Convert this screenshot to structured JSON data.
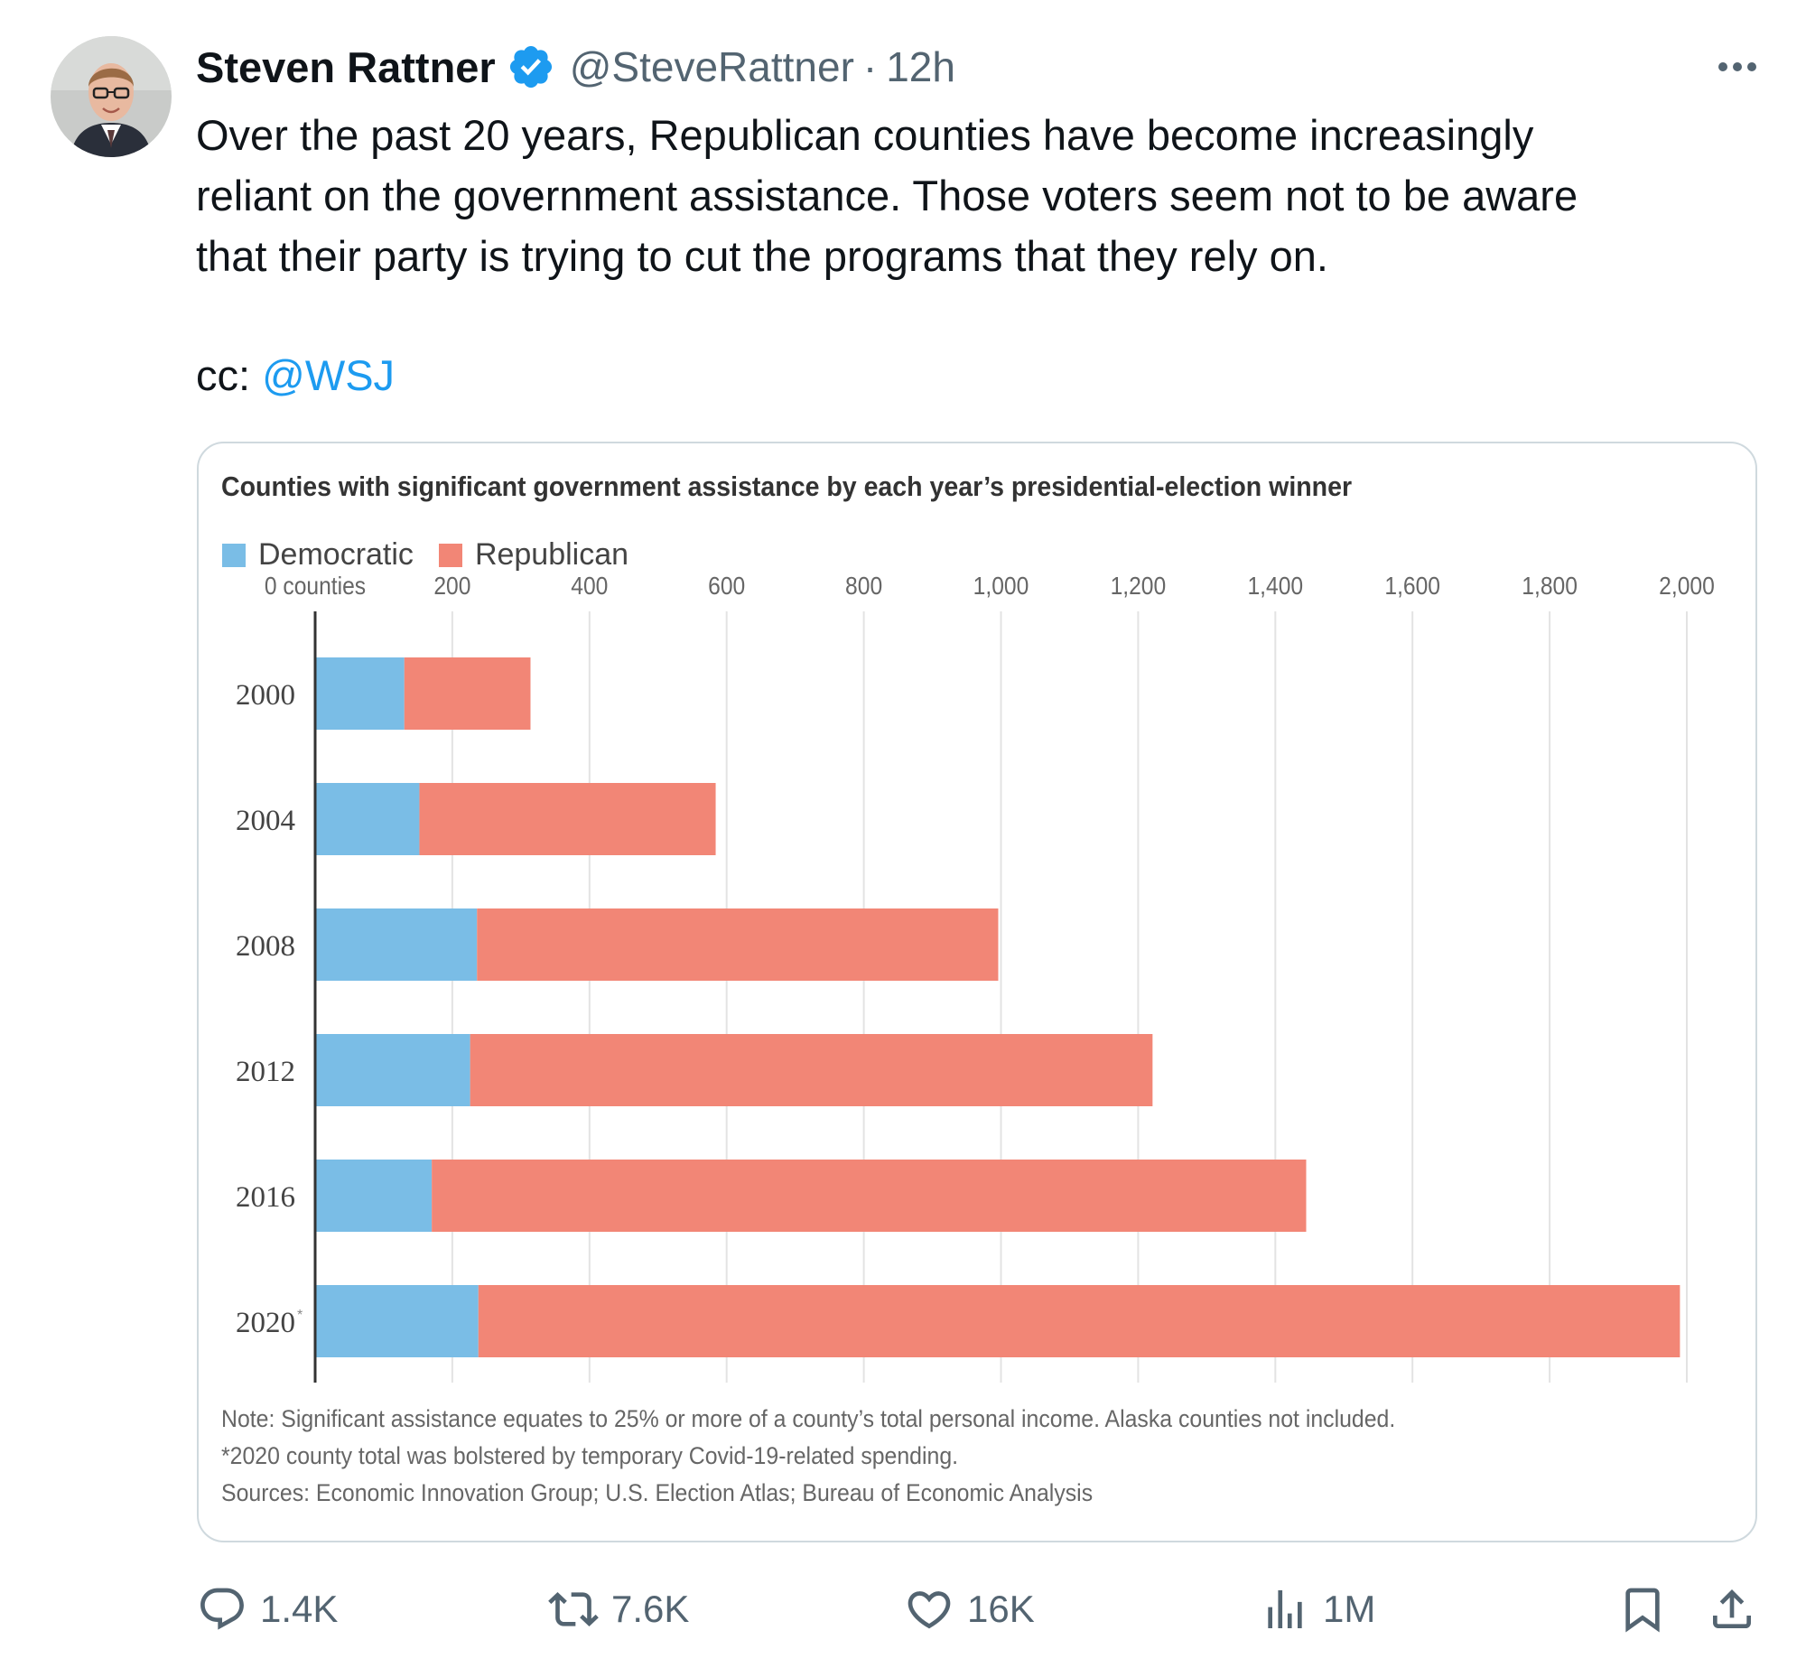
{
  "tweet": {
    "author_name": "Steven Rattner",
    "handle": "@SteveRattner",
    "separator": "·",
    "time": "12h",
    "text_lines": [
      "Over the past 20 years, Republican counties have become increasingly",
      "reliant on the government assistance. Those voters seem not to be aware",
      "that their party is trying to cut the programs that they rely on."
    ],
    "cc_prefix": "cc: ",
    "cc_mention": "@WSJ"
  },
  "actions": {
    "replies": "1.4K",
    "reposts": "7.6K",
    "likes": "16K",
    "views": "1M"
  },
  "icons": {
    "verified": "verified-badge-icon",
    "more": "more-icon",
    "reply": "reply-icon",
    "repost": "repost-icon",
    "like": "heart-icon",
    "views": "views-icon",
    "bookmark": "bookmark-icon",
    "share": "share-icon"
  },
  "colors": {
    "democratic": "#7abde6",
    "republican": "#f28676",
    "link": "#1d9bf0"
  },
  "chart_data": {
    "type": "bar",
    "orientation": "horizontal",
    "stacked": true,
    "title": "Counties with significant government assistance by each year’s presidential-election winner",
    "categories": [
      "2000",
      "2004",
      "2008",
      "2012",
      "2016",
      "2020"
    ],
    "category_marks": [
      "",
      "",
      "",
      "",
      "",
      "*"
    ],
    "series": [
      {
        "name": "Democratic",
        "values": [
          130,
          152,
          236,
          226,
          170,
          238
        ]
      },
      {
        "name": "Republican",
        "values": [
          184,
          432,
          760,
          995,
          1275,
          1752
        ]
      }
    ],
    "x_tick_labels": [
      "0 counties",
      "200",
      "400",
      "600",
      "800",
      "1,000",
      "1,200",
      "1,400",
      "1,600",
      "1,800",
      "2,000"
    ],
    "xlim": [
      0,
      2000
    ],
    "grid": true,
    "legend_position": "top-left",
    "notes": [
      "Note: Significant assistance equates to 25% or more of a county’s total personal income. Alaska counties not included.",
      "*2020 county total was bolstered by temporary Covid-19-related spending.",
      "Sources: Economic Innovation Group; U.S. Election Atlas; Bureau of Economic Analysis"
    ]
  }
}
